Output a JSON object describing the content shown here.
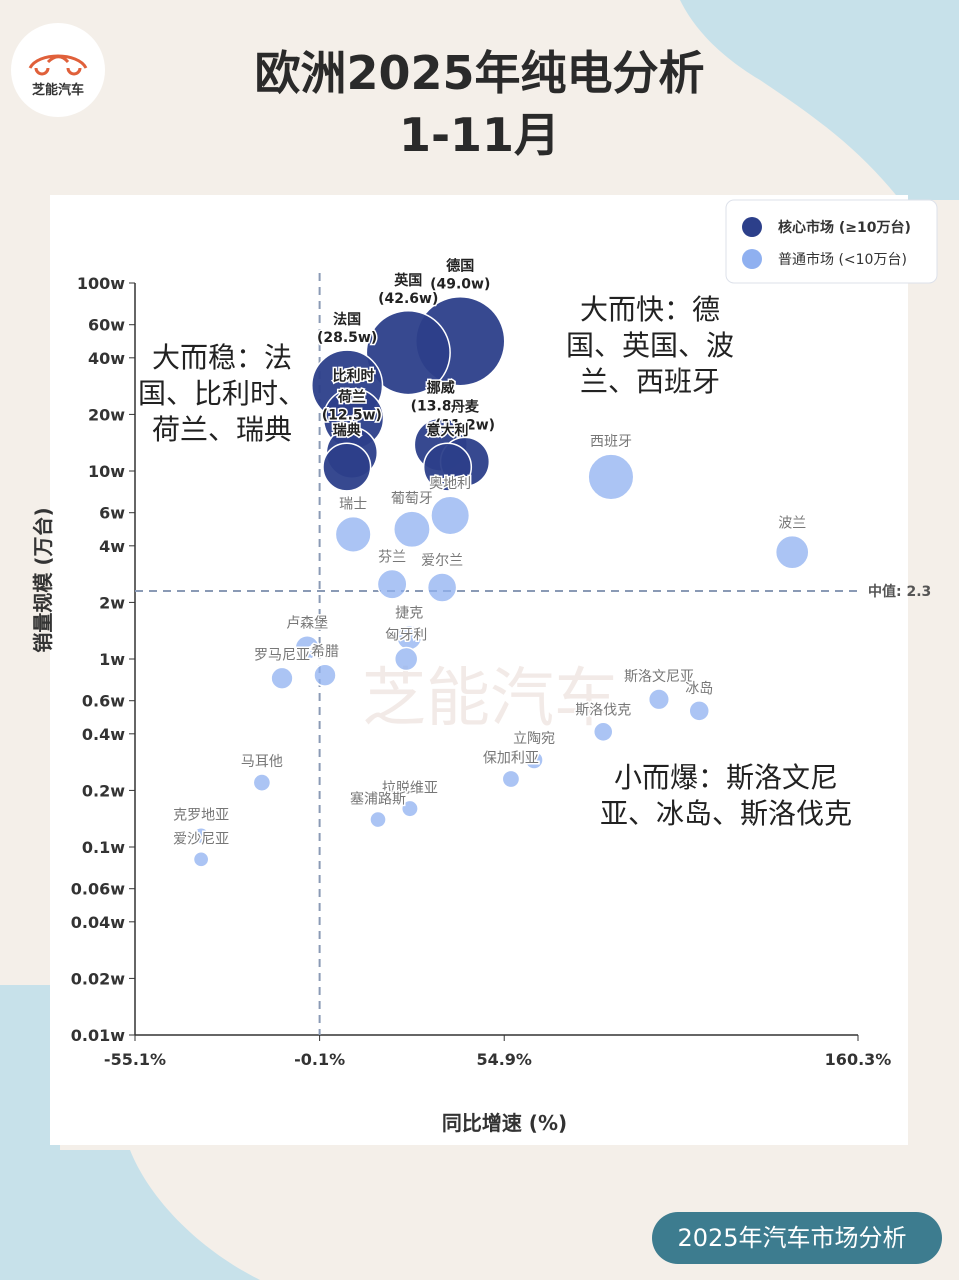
{
  "header": {
    "logo_text": "芝能汽车",
    "title_line1": "欧洲2025年纯电分析",
    "title_line2": "1-11月"
  },
  "footer": {
    "badge": "2025年汽车市场分析"
  },
  "watermark": "芝能汽车",
  "chart_data": {
    "type": "bubble",
    "x_label": "同比增速 (%)",
    "y_label": "销量规模 (万台)",
    "y_scale": "log",
    "xlim": [
      -55.1,
      160.3
    ],
    "xticks": [
      {
        "value": -55.1,
        "label": "-55.1%"
      },
      {
        "value": -0.1,
        "label": "-0.1%"
      },
      {
        "value": 54.9,
        "label": "54.9%"
      },
      {
        "value": 160.3,
        "label": "160.3%"
      }
    ],
    "ylim": [
      0.01,
      100
    ],
    "yticks": [
      {
        "value": 100,
        "label": "100w"
      },
      {
        "value": 60,
        "label": "60w"
      },
      {
        "value": 40,
        "label": "40w"
      },
      {
        "value": 20,
        "label": "20w"
      },
      {
        "value": 10,
        "label": "10w"
      },
      {
        "value": 6,
        "label": "6w"
      },
      {
        "value": 4,
        "label": "4w"
      },
      {
        "value": 2,
        "label": "2w"
      },
      {
        "value": 1,
        "label": "1w"
      },
      {
        "value": 0.6,
        "label": "0.6w"
      },
      {
        "value": 0.4,
        "label": "0.4w"
      },
      {
        "value": 0.2,
        "label": "0.2w"
      },
      {
        "value": 0.1,
        "label": "0.1w"
      },
      {
        "value": 0.06,
        "label": "0.06w"
      },
      {
        "value": 0.04,
        "label": "0.04w"
      },
      {
        "value": 0.02,
        "label": "0.02w"
      },
      {
        "value": 0.01,
        "label": "0.01w"
      }
    ],
    "median_line": {
      "value": 2.3,
      "label": "中值: 2.3"
    },
    "vertical_line_x": -0.1,
    "legend_position": "upper right",
    "series": [
      {
        "name": "核心市场 (≥10万台)",
        "color": "#2c3f8a",
        "labels": [
          "德国",
          "英国",
          "法国",
          "比利时",
          "荷兰",
          "挪威",
          "丹麦",
          "瑞典",
          "意大利"
        ],
        "x": [
          41.8,
          26.3,
          8.1,
          10,
          9.5,
          36,
          43.2,
          8,
          38
        ],
        "values": [
          49.0,
          42.6,
          28.5,
          19,
          12.5,
          13.8,
          11.2,
          10.5,
          10.5
        ],
        "value_labels": [
          "(49.0w)",
          "(42.6w)",
          "(28.5w)",
          null,
          "(12.5w)",
          "(13.8w)",
          "(11.2w)",
          null,
          null
        ]
      },
      {
        "name": "普通市场 (<10万台)",
        "color": "#8fb0f0",
        "labels": [
          "西班牙",
          "波兰",
          "瑞士",
          "葡萄牙",
          "奥地利",
          "芬兰",
          "爱尔兰",
          "捷克",
          "匈牙利",
          "卢森堡",
          "希腊",
          "罗马尼亚",
          "斯洛文尼亚",
          "冰岛",
          "斯洛伐克",
          "立陶宛",
          "保加利亚",
          "马耳他",
          "拉脱维亚",
          "塞浦路斯",
          "克罗地亚",
          "爱沙尼亚"
        ],
        "x": [
          86.7,
          140.7,
          9.9,
          27.4,
          38.8,
          21.5,
          36.4,
          26.6,
          25.7,
          -3.8,
          1.5,
          -11.3,
          101,
          113,
          84.4,
          63.8,
          56.9,
          -17.3,
          26.8,
          17.3,
          -35.4,
          -35.4
        ],
        "values": [
          9.3,
          3.7,
          4.6,
          4.9,
          5.8,
          2.5,
          2.4,
          1.3,
          1.0,
          1.15,
          0.82,
          0.79,
          0.61,
          0.53,
          0.41,
          0.29,
          0.23,
          0.22,
          0.16,
          0.14,
          0.115,
          0.086
        ]
      }
    ],
    "annotations": [
      "大而稳：法国、比利时、荷兰、瑞典",
      "大而快：德国、英国、波兰、西班牙",
      "小而爆：斯洛文尼亚、冰岛、斯洛伐克"
    ]
  }
}
